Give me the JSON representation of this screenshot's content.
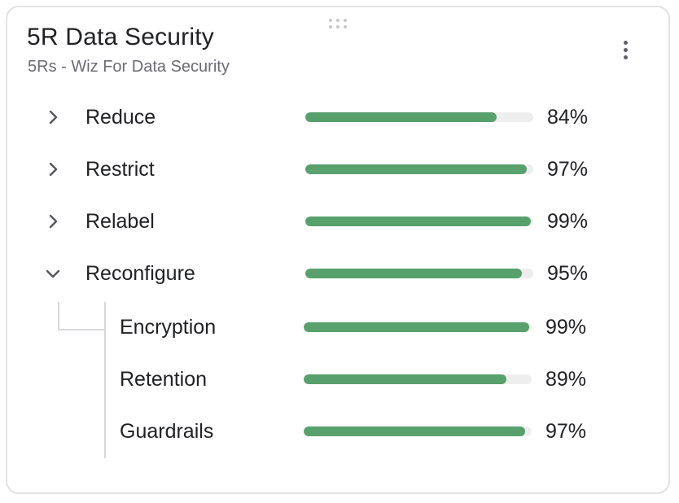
{
  "widget": {
    "title": "5R Data Security",
    "subtitle": "5Rs - Wiz For Data Security",
    "menu_icon": "more-vertical-icon",
    "drag_icon": "drag-handle-icon"
  },
  "colors": {
    "bar_fill": "#58a06c",
    "bar_track": "#eeeeef",
    "border": "#e2e2e6"
  },
  "items": [
    {
      "label": "Reduce",
      "percent_label": "84%",
      "percent": 84,
      "expanded": false,
      "chevron_icon": "chevron-right-icon"
    },
    {
      "label": "Restrict",
      "percent_label": "97%",
      "percent": 97,
      "expanded": false,
      "chevron_icon": "chevron-right-icon"
    },
    {
      "label": "Relabel",
      "percent_label": "99%",
      "percent": 99,
      "expanded": false,
      "chevron_icon": "chevron-right-icon"
    },
    {
      "label": "Reconfigure",
      "percent_label": "95%",
      "percent": 95,
      "expanded": true,
      "chevron_icon": "chevron-down-icon",
      "children": [
        {
          "label": "Encryption",
          "percent_label": "99%",
          "percent": 99
        },
        {
          "label": "Retention",
          "percent_label": "89%",
          "percent": 89
        },
        {
          "label": "Guardrails",
          "percent_label": "97%",
          "percent": 97
        }
      ]
    }
  ]
}
